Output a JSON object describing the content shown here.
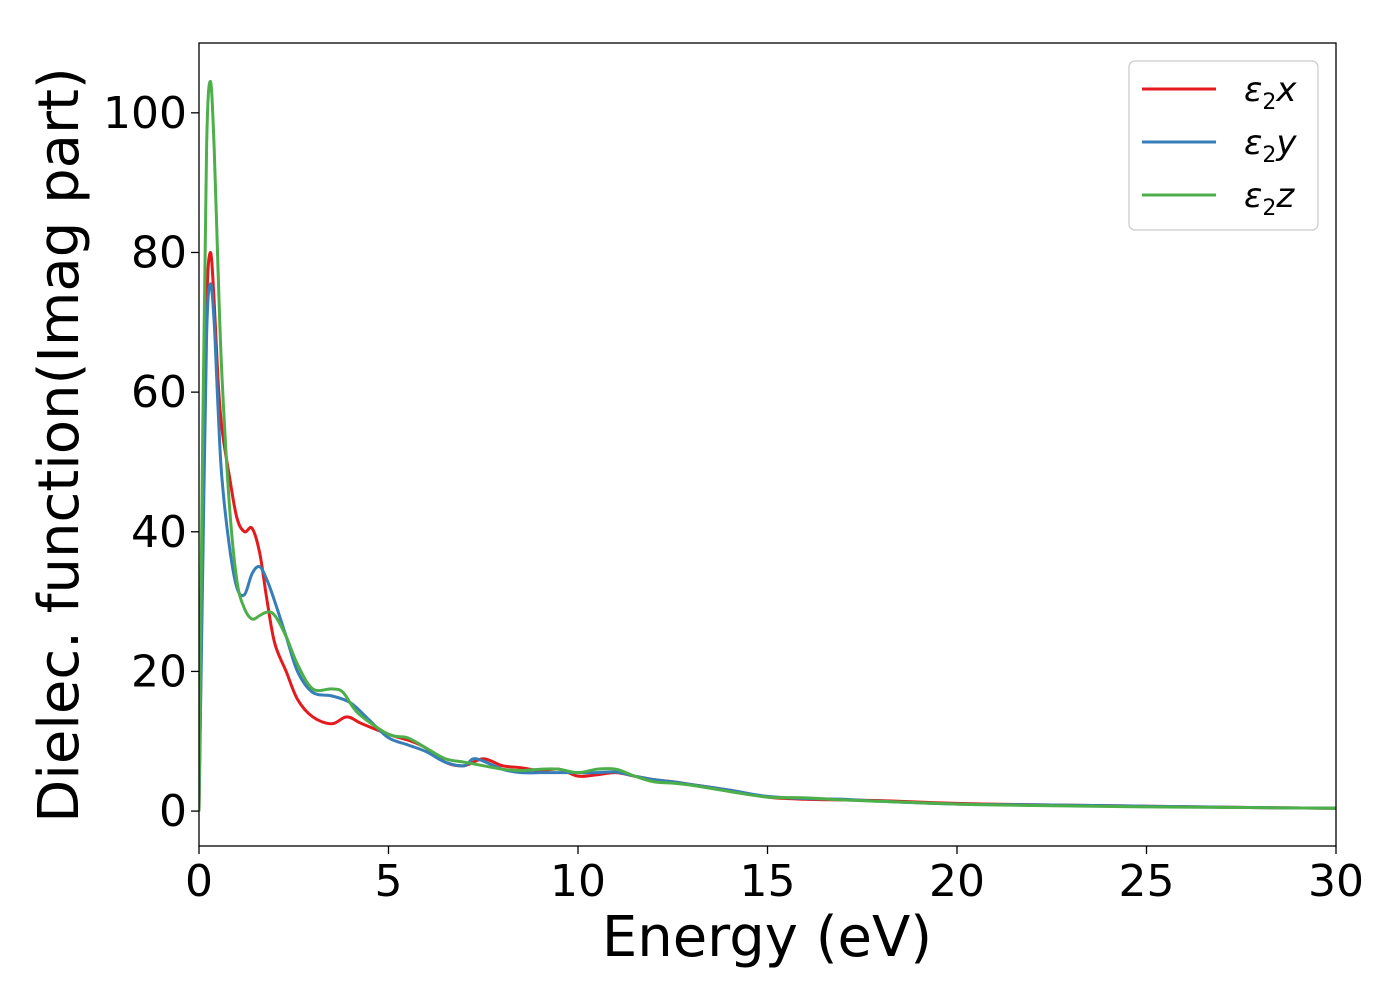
{
  "chart_data": {
    "type": "line",
    "xlabel": "Energy (eV)",
    "ylabel": "Dielec. function(Imag part)",
    "xlim": [
      0,
      30
    ],
    "ylim": [
      -5,
      110
    ],
    "xticks": [
      0,
      5,
      10,
      15,
      20,
      25,
      30
    ],
    "yticks": [
      0,
      20,
      40,
      60,
      80,
      100
    ],
    "grid": false,
    "legend_position": "top-right",
    "series": [
      {
        "name": "ε2x",
        "legend_base": "ε",
        "legend_sub": "2",
        "legend_suffix": "x",
        "color": "#e41a1c",
        "x": [
          0,
          0.1,
          0.2,
          0.3,
          0.4,
          0.5,
          0.6,
          0.8,
          1.0,
          1.2,
          1.4,
          1.6,
          1.8,
          2.0,
          2.3,
          2.6,
          3.0,
          3.5,
          3.9,
          4.3,
          5.0,
          5.6,
          6.0,
          6.5,
          7.0,
          7.5,
          8.0,
          8.5,
          9.0,
          9.5,
          10.0,
          10.5,
          11.0,
          11.5,
          12.0,
          12.5,
          13.0,
          14.0,
          15.0,
          16.0,
          17.0,
          18.0,
          20.0,
          22.0,
          25.0,
          28.0,
          30.0
        ],
        "y": [
          0,
          40,
          72,
          80,
          73,
          62,
          55,
          48,
          42,
          40,
          40.5,
          37,
          30,
          24,
          20,
          16,
          13.5,
          12.5,
          13.5,
          12.5,
          11,
          10,
          9,
          7,
          6.5,
          7.5,
          6.5,
          6.2,
          5.8,
          6,
          5,
          5.2,
          5.5,
          5,
          4.5,
          4.2,
          3.8,
          3,
          2,
          1.7,
          1.6,
          1.5,
          1.1,
          0.9,
          0.7,
          0.5,
          0.4
        ]
      },
      {
        "name": "ε2y",
        "legend_base": "ε",
        "legend_sub": "2",
        "legend_suffix": "y",
        "color": "#377eb8",
        "x": [
          0,
          0.1,
          0.2,
          0.3,
          0.4,
          0.5,
          0.6,
          0.8,
          1.0,
          1.2,
          1.4,
          1.6,
          1.8,
          2.0,
          2.3,
          2.6,
          3.0,
          3.5,
          4.0,
          4.5,
          5.0,
          5.5,
          6.0,
          6.5,
          7.0,
          7.3,
          8.0,
          8.5,
          9.0,
          9.5,
          10.0,
          10.5,
          11.0,
          11.5,
          12.0,
          12.5,
          13.0,
          14.0,
          15.0,
          16.0,
          17.0,
          18.0,
          20.0,
          22.0,
          25.0,
          28.0,
          30.0
        ],
        "y": [
          0,
          35,
          68,
          75.5,
          70,
          58,
          48,
          38,
          32,
          31,
          34,
          35,
          33,
          30,
          25,
          20,
          17,
          16.5,
          15.5,
          13,
          10.5,
          9.5,
          8.5,
          7,
          6.5,
          7.5,
          6,
          5.5,
          5.5,
          5.5,
          5.5,
          5.5,
          5.6,
          5,
          4.5,
          4.2,
          3.8,
          3,
          2.1,
          1.8,
          1.7,
          1.4,
          1,
          0.9,
          0.7,
          0.5,
          0.4
        ]
      },
      {
        "name": "ε2z",
        "legend_base": "ε",
        "legend_sub": "2",
        "legend_suffix": "z",
        "color": "#4daf4a",
        "x": [
          0,
          0.1,
          0.2,
          0.3,
          0.4,
          0.5,
          0.6,
          0.8,
          1.0,
          1.2,
          1.4,
          1.6,
          1.8,
          2.0,
          2.3,
          2.6,
          3.0,
          3.5,
          3.8,
          4.2,
          5.0,
          5.5,
          6.0,
          6.5,
          7.0,
          7.5,
          8.0,
          8.5,
          9.0,
          9.5,
          10.0,
          10.5,
          11.0,
          11.5,
          12.0,
          12.5,
          13.0,
          14.0,
          15.0,
          16.0,
          17.0,
          18.0,
          20.0,
          22.0,
          25.0,
          28.0,
          30.0
        ],
        "y": [
          0,
          55,
          95,
          104.5,
          95,
          78,
          63,
          44,
          33,
          29,
          27.5,
          28,
          28.5,
          28,
          25,
          21,
          17.5,
          17.5,
          17,
          14,
          11,
          10.5,
          9,
          7.5,
          7,
          6.5,
          6,
          5.8,
          6,
          6,
          5.5,
          6,
          6,
          5,
          4.2,
          4,
          3.7,
          2.8,
          2,
          1.9,
          1.6,
          1.4,
          1,
          0.8,
          0.6,
          0.5,
          0.4
        ]
      }
    ]
  }
}
